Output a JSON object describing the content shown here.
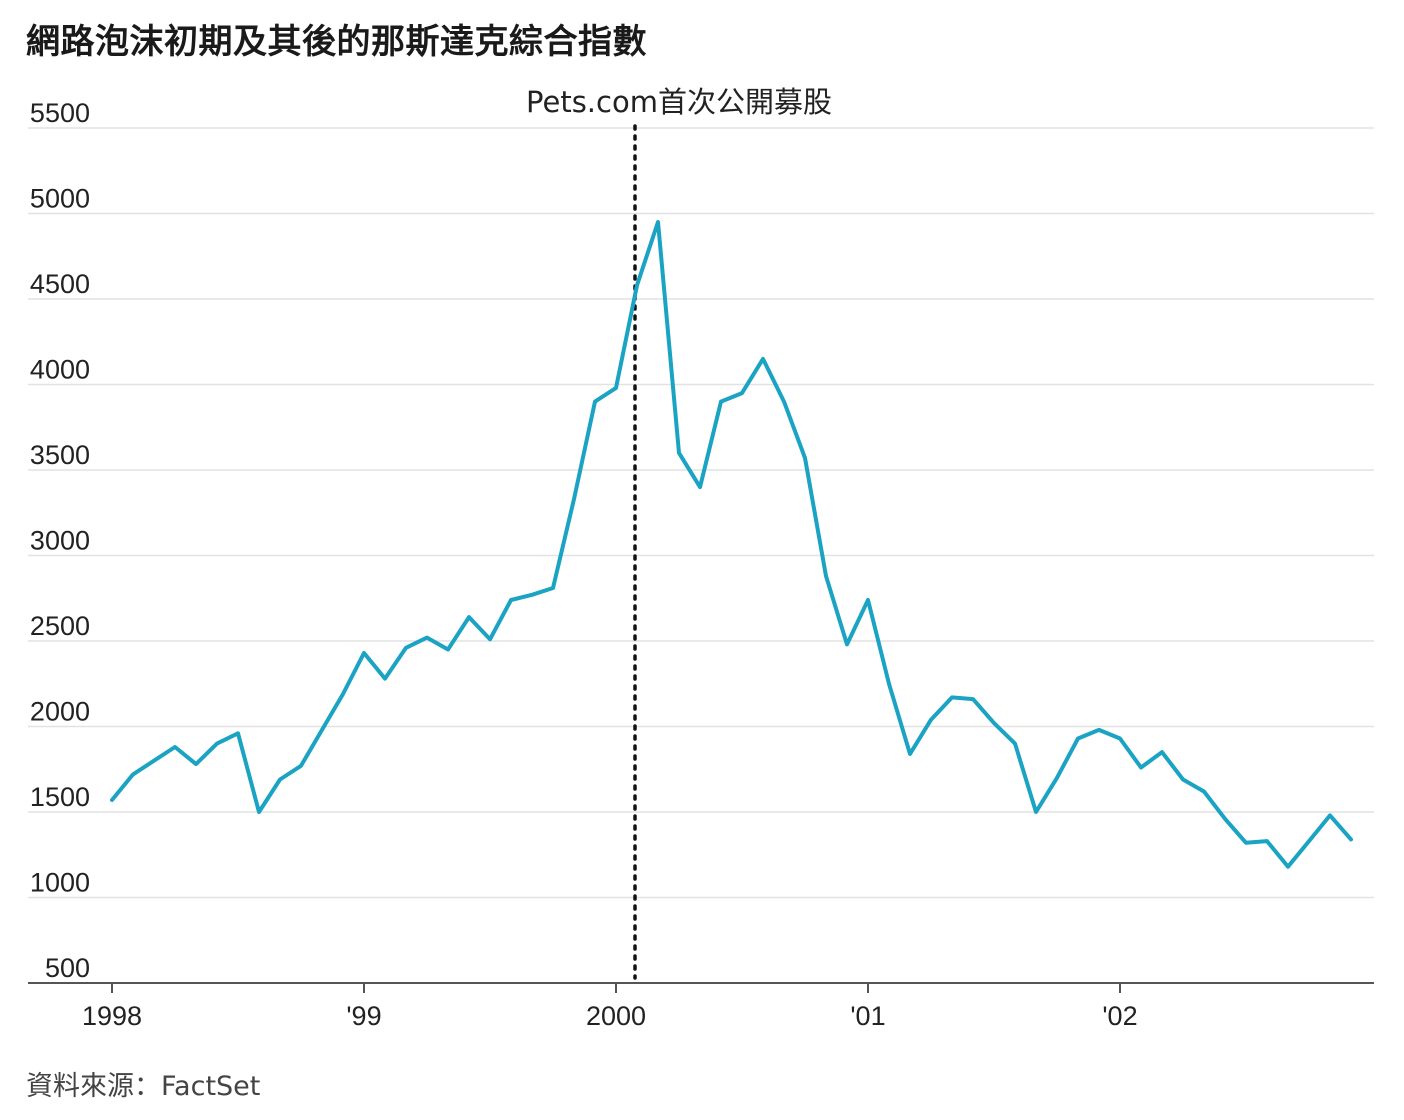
{
  "chart_data": {
    "type": "line",
    "title": "網路泡沫初期及其後的那斯達克綜合指數",
    "source": "資料來源：FactSet",
    "xlabel": "",
    "ylabel": "",
    "ylim": [
      500,
      5500
    ],
    "y_ticks": [
      "5500",
      "5000",
      "4500",
      "4000",
      "3500",
      "3000",
      "2500",
      "2000",
      "1500",
      "1000",
      "500"
    ],
    "x_ticks": [
      "1998",
      "'99",
      "2000",
      "'01",
      "'02"
    ],
    "grid": "horizontal",
    "annotation": {
      "label": "Pets.com首次公開募股",
      "date": "2000-02"
    },
    "series": [
      {
        "color": "#1aa3c2",
        "x": [
          "1998-01",
          "1998-02",
          "1998-03",
          "1998-04",
          "1998-05",
          "1998-06",
          "1998-07",
          "1998-08",
          "1998-09",
          "1998-10",
          "1998-11",
          "1998-12",
          "1999-01",
          "1999-02",
          "1999-03",
          "1999-04",
          "1999-05",
          "1999-06",
          "1999-07",
          "1999-08",
          "1999-09",
          "1999-10",
          "1999-11",
          "1999-12",
          "2000-01",
          "2000-02",
          "2000-03",
          "2000-04",
          "2000-05",
          "2000-06",
          "2000-07",
          "2000-08",
          "2000-09",
          "2000-10",
          "2000-11",
          "2000-12",
          "2001-01",
          "2001-02",
          "2001-03",
          "2001-04",
          "2001-05",
          "2001-06",
          "2001-07",
          "2001-08",
          "2001-09",
          "2001-10",
          "2001-11",
          "2001-12",
          "2002-01",
          "2002-02",
          "2002-03",
          "2002-04",
          "2002-05",
          "2002-06",
          "2002-07",
          "2002-08",
          "2002-09",
          "2002-10",
          "2002-11",
          "2002-12"
        ],
        "values": [
          1570,
          1720,
          1800,
          1880,
          1780,
          1900,
          1960,
          1500,
          1690,
          1770,
          1980,
          2190,
          2430,
          2280,
          2460,
          2520,
          2450,
          2640,
          2510,
          2740,
          2770,
          2810,
          3330,
          3900,
          3980,
          4580,
          4950,
          3600,
          3400,
          3900,
          3950,
          4150,
          3900,
          3570,
          2880,
          2480,
          2740,
          2250,
          1840,
          2040,
          2170,
          2160,
          2020,
          1900,
          1500,
          1700,
          1930,
          1980,
          1930,
          1760,
          1850,
          1690,
          1620,
          1460,
          1320,
          1330,
          1180,
          1330,
          1480,
          1340
        ]
      }
    ]
  }
}
